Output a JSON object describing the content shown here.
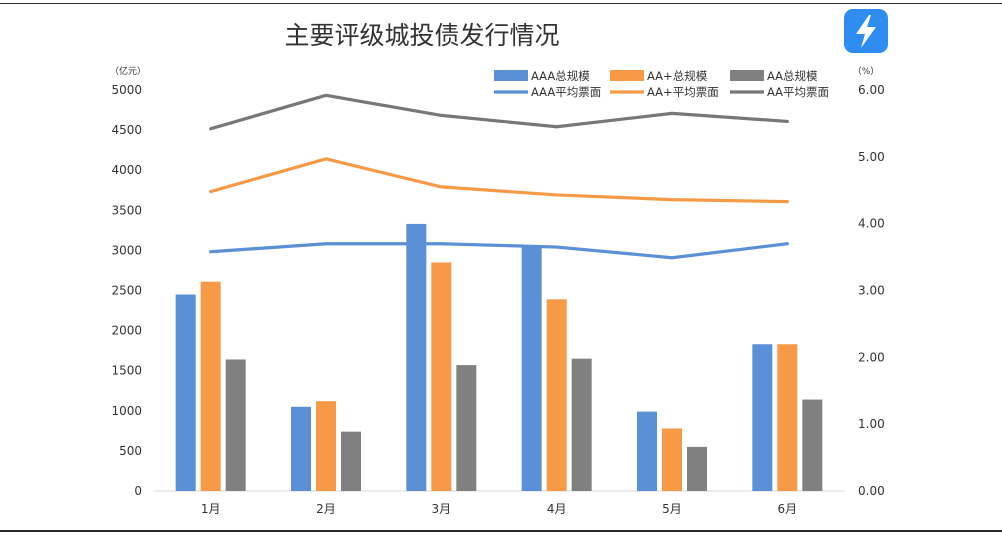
{
  "logo": {
    "icon": "lightning-bolt-icon",
    "color": "#2f8cf0"
  },
  "chart_data": {
    "type": "bar",
    "title": "主要评级城投债发行情况",
    "categories": [
      "1月",
      "2月",
      "3月",
      "4月",
      "5月",
      "6月"
    ],
    "y_left": {
      "unit": "（亿元）",
      "range": [
        0,
        5000
      ],
      "ticks": [
        "0",
        "500",
        "1000",
        "1500",
        "2000",
        "2500",
        "3000",
        "3500",
        "4000",
        "4500",
        "5000"
      ]
    },
    "y_right": {
      "unit": "（%）",
      "range": [
        0,
        6
      ],
      "ticks": [
        "0.00",
        "1.00",
        "2.00",
        "3.00",
        "4.00",
        "5.00",
        "6.00"
      ]
    },
    "bar_series": [
      {
        "name": "AAA总规模",
        "color": "#5b8fd6",
        "values": [
          2450,
          1050,
          3330,
          3060,
          990,
          1830
        ]
      },
      {
        "name": "AA+总规模",
        "color": "#f79a47",
        "values": [
          2610,
          1120,
          2850,
          2390,
          780,
          1830
        ]
      },
      {
        "name": "AA总规模",
        "color": "#808080",
        "values": [
          1640,
          740,
          1570,
          1650,
          550,
          1140
        ]
      }
    ],
    "line_series": [
      {
        "name": "AAA平均票面",
        "color": "#5b8fd6",
        "values": [
          3.58,
          3.7,
          3.7,
          3.65,
          3.49,
          3.7
        ]
      },
      {
        "name": "AA+平均票面",
        "color": "#f79a47",
        "values": [
          4.48,
          4.97,
          4.55,
          4.43,
          4.36,
          4.33
        ]
      },
      {
        "name": "AA平均票面",
        "color": "#777777",
        "values": [
          5.42,
          5.92,
          5.62,
          5.45,
          5.65,
          5.53
        ]
      }
    ],
    "legend_position": "top-right",
    "grid": false
  }
}
